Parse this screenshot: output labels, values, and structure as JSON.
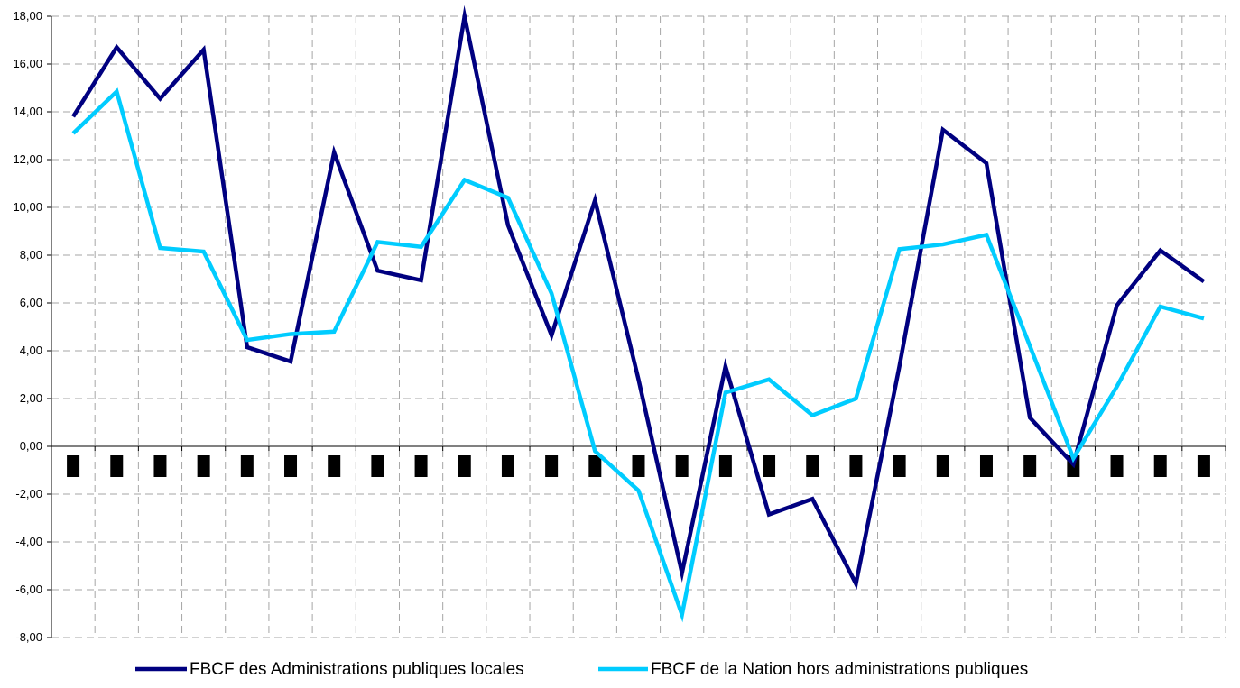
{
  "chart_data": {
    "type": "line",
    "title": "",
    "xlabel": "",
    "ylabel": "",
    "ylim": [
      -8,
      18
    ],
    "y_ticks": [
      "18,00",
      "16,00",
      "14,00",
      "12,00",
      "10,00",
      "8,00",
      "6,00",
      "4,00",
      "2,00",
      "0,00",
      "-2,00",
      "-4,00",
      "-6,00",
      "-8,00"
    ],
    "y_tick_values": [
      18,
      16,
      14,
      12,
      10,
      8,
      6,
      4,
      2,
      0,
      -2,
      -4,
      -6,
      -8
    ],
    "grid": true,
    "legend_position": "bottom",
    "x_count": 27,
    "x_tick_labels_printed": "black rectangles below the zero line (label text illegible)",
    "series": [
      {
        "name": "FBCF des Administrations publiques locales",
        "color": "#000080",
        "values": [
          13.8,
          16.7,
          14.55,
          16.6,
          4.15,
          3.55,
          12.3,
          7.35,
          6.95,
          18.0,
          9.25,
          4.65,
          10.3,
          2.8,
          -5.3,
          3.35,
          -2.85,
          -2.2,
          -5.75,
          3.35,
          13.25,
          11.85,
          1.2,
          -0.75,
          5.9,
          8.2,
          6.9
        ]
      },
      {
        "name": "FBCF de la Nation hors administrations publiques",
        "color": "#00CCFF",
        "values": [
          13.1,
          14.85,
          8.3,
          8.15,
          4.45,
          4.7,
          4.8,
          8.55,
          8.35,
          11.15,
          10.4,
          6.4,
          -0.2,
          -1.85,
          -7.05,
          2.25,
          2.8,
          1.3,
          2.0,
          8.25,
          8.45,
          8.85,
          4.2,
          -0.5,
          2.5,
          5.85,
          5.35
        ]
      }
    ]
  }
}
